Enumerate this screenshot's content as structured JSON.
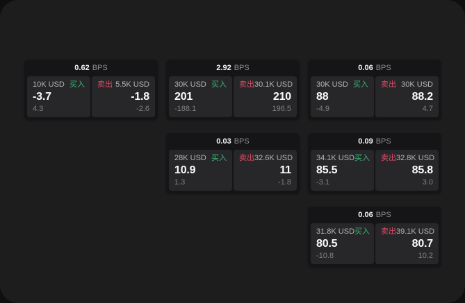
{
  "labels": {
    "bps_unit": "BPS",
    "buy": "买入",
    "sell": "卖出"
  },
  "colors": {
    "buy_green": "#3db575",
    "sell_red": "#dd4a64",
    "surface_bg": "#1d1d1e",
    "card_bg": "#151517",
    "panel_bg": "#272729",
    "outer_bg": "#0f0f10"
  },
  "cards": [
    {
      "row": 1,
      "col": 1,
      "bps": "0.62",
      "buy": {
        "amount": "10K USD",
        "price": "-3.7",
        "delta": "4.3"
      },
      "sell": {
        "amount": "5.5K USD",
        "price": "-1.8",
        "delta": "-2.6"
      }
    },
    {
      "row": 1,
      "col": 2,
      "bps": "2.92",
      "buy": {
        "amount": "30K USD",
        "price": "201",
        "delta": "-188.1"
      },
      "sell": {
        "amount": "30.1K USD",
        "price": "210",
        "delta": "196.5"
      }
    },
    {
      "row": 1,
      "col": 3,
      "bps": "0.06",
      "buy": {
        "amount": "30K USD",
        "price": "88",
        "delta": "-4.9"
      },
      "sell": {
        "amount": "30K USD",
        "price": "88.2",
        "delta": "4.7"
      }
    },
    {
      "row": 2,
      "col": 2,
      "bps": "0.03",
      "buy": {
        "amount": "28K USD",
        "price": "10.9",
        "delta": "1.3"
      },
      "sell": {
        "amount": "32.6K USD",
        "price": "11",
        "delta": "-1.8"
      }
    },
    {
      "row": 2,
      "col": 3,
      "bps": "0.09",
      "buy": {
        "amount": "34.1K USD",
        "price": "85.5",
        "delta": "-3.1"
      },
      "sell": {
        "amount": "32.8K USD",
        "price": "85.8",
        "delta": "3.0"
      }
    },
    {
      "row": 3,
      "col": 3,
      "bps": "0.06",
      "buy": {
        "amount": "31.8K USD",
        "price": "80.5",
        "delta": "-10.8"
      },
      "sell": {
        "amount": "39.1K USD",
        "price": "80.7",
        "delta": "10.2"
      }
    }
  ]
}
